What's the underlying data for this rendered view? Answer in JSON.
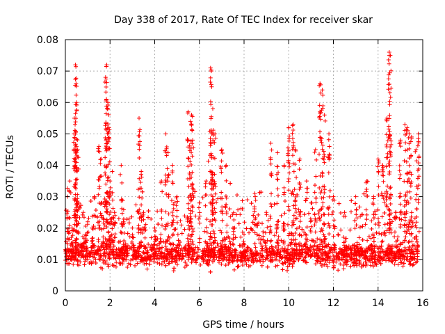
{
  "chart_data": {
    "type": "scatter",
    "title": "Day 338 of 2017, Rate Of TEC Index for receiver skar",
    "xlabel": "GPS time / hours",
    "ylabel": "ROTI / TECUs",
    "xlim": [
      0,
      16
    ],
    "ylim": [
      0,
      0.08
    ],
    "x_ticks": [
      0,
      2,
      4,
      6,
      8,
      10,
      12,
      14,
      16
    ],
    "x_tick_labels": [
      "0",
      "2",
      "4",
      "6",
      "8",
      "10",
      "12",
      "14",
      "16"
    ],
    "y_ticks": [
      0,
      0.01,
      0.02,
      0.03,
      0.04,
      0.05,
      0.06,
      0.07,
      0.08
    ],
    "y_tick_labels": [
      "0",
      "0.01",
      "0.02",
      "0.03",
      "0.04",
      "0.05",
      "0.06",
      "0.07",
      "0.08"
    ],
    "grid": true,
    "marker": "+",
    "marker_color": "#ff0000",
    "series": [
      {
        "name": "ROTI",
        "x": [
          0.05,
          0.1,
          0.2,
          0.3,
          0.4,
          0.45,
          0.48,
          0.5,
          0.55,
          0.6,
          0.7,
          0.8,
          0.9,
          1.0,
          1.1,
          1.2,
          1.3,
          1.5,
          1.6,
          1.7,
          1.8,
          1.85,
          1.9,
          1.95,
          2.0,
          2.1,
          2.2,
          2.5,
          2.6,
          2.7,
          3.0,
          3.3,
          3.4,
          3.5,
          4.0,
          4.3,
          4.5,
          4.6,
          4.8,
          5.0,
          5.5,
          5.6,
          5.65,
          5.7,
          6.0,
          6.3,
          6.5,
          6.55,
          6.6,
          6.7,
          7.0,
          7.2,
          7.5,
          8.0,
          8.5,
          9.0,
          9.2,
          9.5,
          9.8,
          10.0,
          10.2,
          10.3,
          10.5,
          10.8,
          11.0,
          11.2,
          11.4,
          11.5,
          11.6,
          11.8,
          12.0,
          12.5,
          13.0,
          13.5,
          13.8,
          14.0,
          14.2,
          14.4,
          14.5,
          14.55,
          14.8,
          15.0,
          15.2,
          15.3,
          15.4,
          15.5,
          15.7,
          15.8
        ],
        "y": [
          0.012,
          0.03,
          0.035,
          0.02,
          0.055,
          0.072,
          0.066,
          0.06,
          0.045,
          0.028,
          0.015,
          0.025,
          0.018,
          0.022,
          0.012,
          0.02,
          0.03,
          0.046,
          0.042,
          0.028,
          0.068,
          0.072,
          0.06,
          0.052,
          0.035,
          0.038,
          0.025,
          0.04,
          0.022,
          0.015,
          0.02,
          0.055,
          0.038,
          0.025,
          0.02,
          0.035,
          0.05,
          0.044,
          0.04,
          0.03,
          0.057,
          0.054,
          0.056,
          0.048,
          0.028,
          0.035,
          0.071,
          0.065,
          0.058,
          0.05,
          0.045,
          0.04,
          0.02,
          0.018,
          0.03,
          0.025,
          0.047,
          0.044,
          0.04,
          0.052,
          0.053,
          0.045,
          0.042,
          0.035,
          0.028,
          0.045,
          0.066,
          0.064,
          0.056,
          0.05,
          0.03,
          0.025,
          0.03,
          0.035,
          0.03,
          0.042,
          0.04,
          0.055,
          0.076,
          0.075,
          0.025,
          0.048,
          0.053,
          0.052,
          0.05,
          0.049,
          0.045,
          0.05
        ]
      }
    ]
  }
}
